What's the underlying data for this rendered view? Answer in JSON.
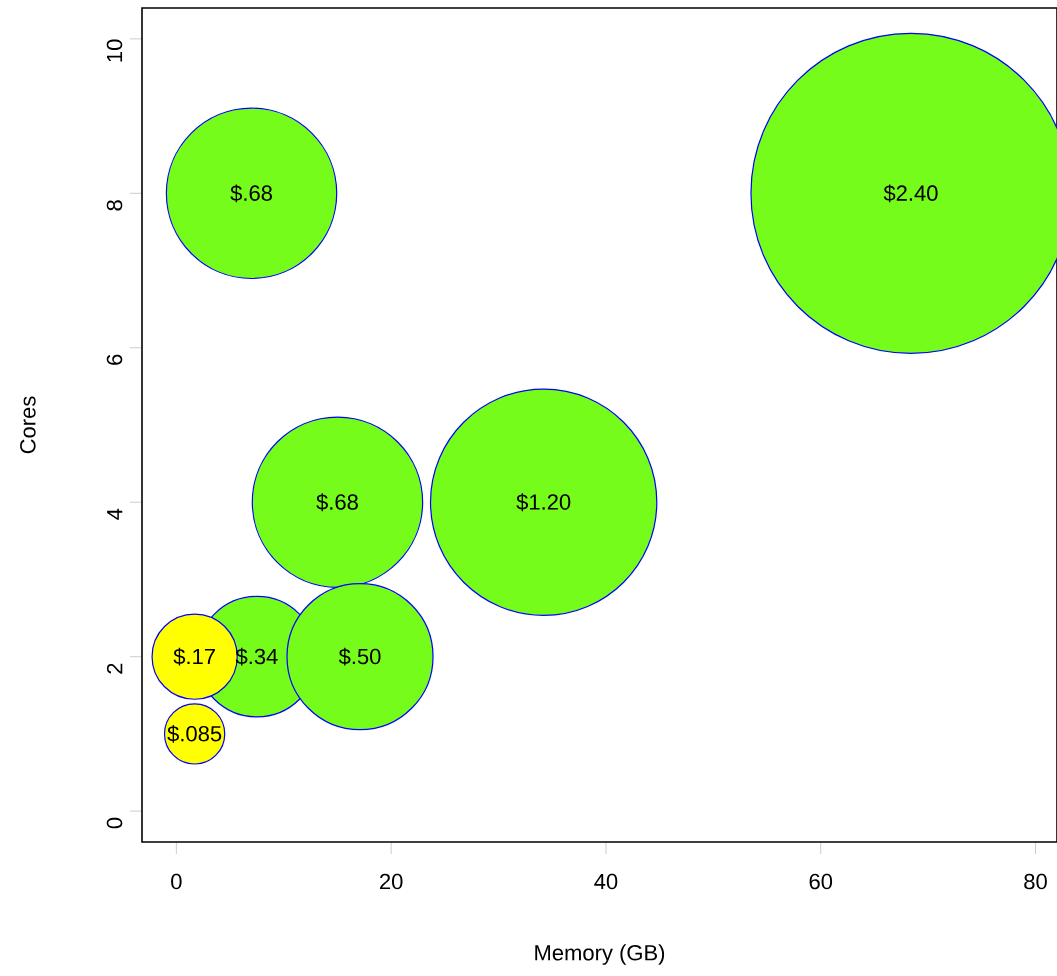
{
  "chart_data": {
    "type": "bubble",
    "xlabel": "Memory (GB)",
    "ylabel": "Cores",
    "x": [
      7.5,
      15,
      17.1,
      34.2,
      68.4,
      7,
      1.7,
      1.7
    ],
    "values": [
      2,
      4,
      2,
      4,
      8,
      8,
      2,
      1
    ],
    "sizes": [
      0.1417,
      0.2833,
      0.2083,
      0.5,
      1,
      0.2833,
      0.0708,
      0.0354
    ],
    "colors": [
      "#76fc1b",
      "#76fc1b",
      "#76fc1b",
      "#76fc1b",
      "#76fc1b",
      "#76fc1b",
      "#ffff00",
      "#ffff00"
    ],
    "annotations": [
      {
        "text": "$.34",
        "x": 7.5,
        "y": 2
      },
      {
        "text": "$.68",
        "x": 15,
        "y": 4
      },
      {
        "text": "$.50",
        "x": 17.1,
        "y": 2
      },
      {
        "text": "$1.20",
        "x": 34.2,
        "y": 4
      },
      {
        "text": "$2.40",
        "x": 68.4,
        "y": 8
      },
      {
        "text": "$.68",
        "x": 7,
        "y": 8
      },
      {
        "text": "$.17",
        "x": 1.7,
        "y": 2
      },
      {
        "text": "$.085",
        "x": 1.7,
        "y": 1
      }
    ],
    "xlim": [
      -3.2,
      82
    ],
    "ylim": [
      -0.4,
      10.4
    ],
    "xticks": [
      0,
      20,
      40,
      60,
      80
    ],
    "yticks": [
      0,
      2,
      4,
      6,
      8,
      10
    ]
  }
}
